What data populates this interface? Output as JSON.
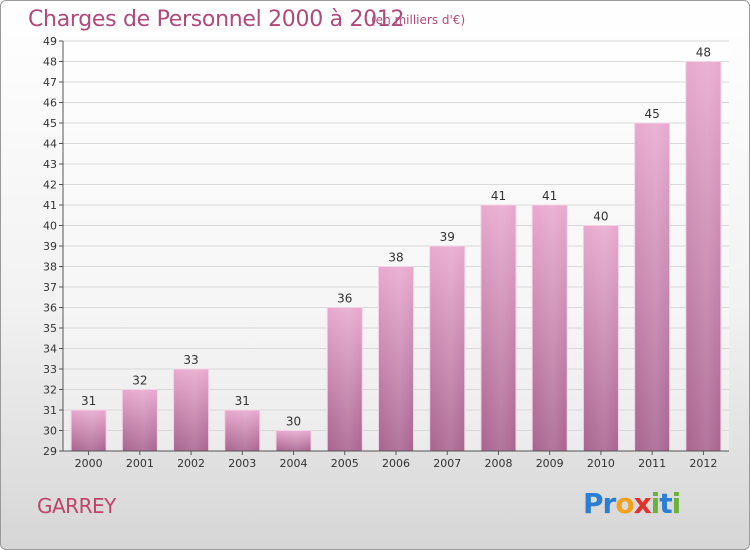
{
  "title": "Charges de Personnel 2000 à 2012",
  "subtitle": "(en milliers d'€)",
  "commune": "GARREY",
  "logo": {
    "text": "Proxiti",
    "letters": [
      {
        "char": "P",
        "color": "#2a7fd4"
      },
      {
        "char": "r",
        "color": "#2a7fd4"
      },
      {
        "char": "o",
        "color": "#f4a21b"
      },
      {
        "char": "x",
        "color": "#e4322b"
      },
      {
        "char": "i",
        "color": "#6bb23a"
      },
      {
        "char": "t",
        "color": "#2a7fd4"
      },
      {
        "char": "i",
        "color": "#6bb23a"
      }
    ]
  },
  "colors": {
    "accent": "#b04a7c",
    "bar_top": "#e8a9ce",
    "bar_bottom": "#a8648f",
    "grid": "#d9d9d9",
    "axis": "#555555"
  },
  "chart_data": {
    "type": "bar",
    "title": "Charges de Personnel 2000 à 2012",
    "subtitle": "(en milliers d'€)",
    "categories": [
      "2000",
      "2001",
      "2002",
      "2003",
      "2004",
      "2005",
      "2006",
      "2007",
      "2008",
      "2009",
      "2010",
      "2011",
      "2012"
    ],
    "values": [
      31,
      32,
      33,
      31,
      30,
      36,
      38,
      39,
      41,
      41,
      40,
      45,
      48
    ],
    "ylim": [
      29,
      49
    ],
    "yticks": [
      29,
      30,
      31,
      32,
      33,
      34,
      35,
      36,
      37,
      38,
      39,
      40,
      41,
      42,
      43,
      44,
      45,
      46,
      47,
      48,
      49
    ],
    "grid": true,
    "data_labels": true
  }
}
